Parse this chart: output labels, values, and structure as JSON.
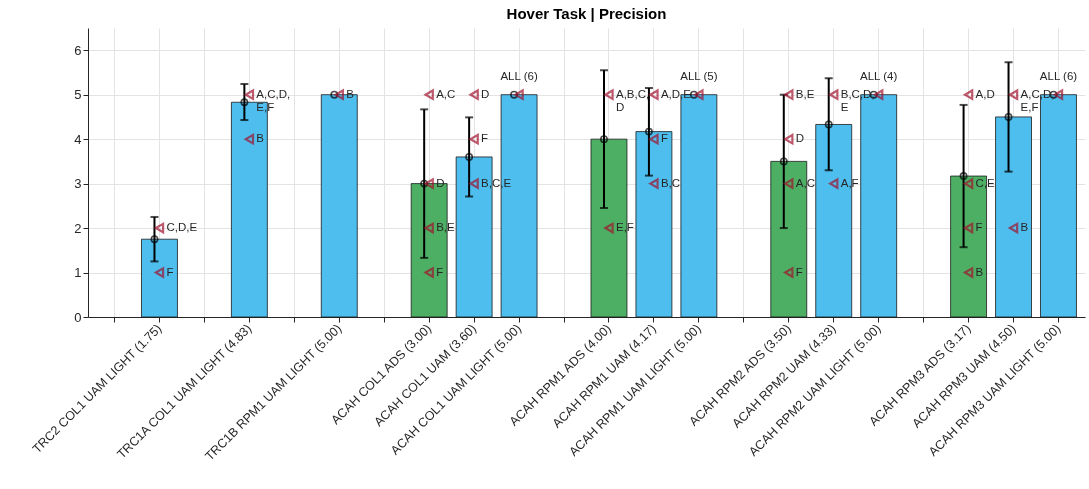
{
  "chart_data": {
    "type": "bar",
    "title": "Hover Task | Precision",
    "categories": [
      null,
      "TRC2 COL1 UAM LIGHT  (1.75)",
      null,
      "TRC1A COL1 UAM LIGHT  (4.83)",
      null,
      "TRC1B RPM1 UAM LIGHT  (5.00)",
      null,
      "ACAH COL1 ADS  (3.00)",
      "ACAH COL1 UAM  (3.60)",
      "ACAH COL1 UAM LIGHT  (5.00)",
      null,
      "ACAH RPM1 ADS  (4.00)",
      "ACAH RPM1 UAM  (4.17)",
      "ACAH RPM1 UAM LIGHT  (5.00)",
      null,
      "ACAH RPM2 ADS  (3.50)",
      "ACAH RPM2 UAM  (4.33)",
      "ACAH RPM2 UAM LIGHT  (5.00)",
      null,
      "ACAH RPM3 ADS  (3.17)",
      "ACAH RPM3 UAM  (4.50)",
      "ACAH RPM3 UAM LIGHT  (5.00)"
    ],
    "series": [
      {
        "values": [
          null,
          1.75,
          null,
          4.83,
          null,
          5.0,
          null,
          3.0,
          3.6,
          5.0,
          null,
          4.0,
          4.17,
          5.0,
          null,
          3.5,
          4.33,
          5.0,
          null,
          3.17,
          4.5,
          5.0
        ],
        "colors": [
          "#4dbeee",
          "#4dbeee",
          "#4dbeee",
          "#4dbeee",
          "#4dbeee",
          "#4dbeee",
          "#4dbeee",
          "#4daf64",
          "#4dbeee",
          "#4dbeee",
          "#4dbeee",
          "#4daf64",
          "#4dbeee",
          "#4dbeee",
          "#4dbeee",
          "#4daf64",
          "#4dbeee",
          "#4dbeee",
          "#4dbeee",
          "#4daf64",
          "#4dbeee",
          "#4dbeee"
        ],
        "errors": [
          null,
          [
            1.25,
            2.25
          ],
          null,
          [
            4.43,
            5.24
          ],
          null,
          null,
          null,
          [
            1.33,
            4.67
          ],
          [
            2.71,
            4.49
          ],
          null,
          null,
          [
            2.45,
            5.55
          ],
          [
            3.18,
            5.15
          ],
          null,
          null,
          [
            2.0,
            5.0
          ],
          [
            3.3,
            5.37
          ],
          null,
          null,
          [
            1.57,
            4.77
          ],
          [
            3.27,
            5.73
          ],
          null
        ]
      },
      {
        "type": "scatter",
        "color": "#000000",
        "marker": "circle",
        "x": [
          "TRC2 COL1 UAM LIGHT  (1.75)",
          "TRC1A COL1 UAM LIGHT  (4.83)",
          "TRC1B RPM1 UAM LIGHT  (5.00)",
          "ACAH COL1 ADS  (3.00)",
          "ACAH COL1 UAM  (3.60)",
          "ACAH COL1 UAM LIGHT  (5.00)",
          "ACAH RPM1 ADS  (4.00)",
          "ACAH RPM1 UAM  (4.17)",
          "ACAH RPM1 UAM LIGHT  (5.00)",
          "ACAH RPM2 ADS  (3.50)",
          "ACAH RPM2 UAM  (4.33)",
          "ACAH RPM2 UAM LIGHT  (5.00)",
          "ACAH RPM3 ADS  (3.17)",
          "ACAH RPM3 UAM  (4.50)",
          "ACAH RPM3 UAM LIGHT  (5.00)"
        ],
        "values": [
          1.75,
          4.83,
          5.0,
          3.0,
          3.6,
          5.0,
          4.0,
          4.17,
          5.0,
          3.5,
          4.33,
          5.0,
          3.17,
          4.5,
          5.0
        ]
      },
      {
        "type": "scatter",
        "color": "#a2142f",
        "marker": "triangle",
        "x": [
          "TRC2 COL1 UAM LIGHT  (1.75)",
          "TRC2 COL1 UAM LIGHT  (1.75)",
          "TRC1A COL1 UAM LIGHT  (4.83)",
          "TRC1A COL1 UAM LIGHT  (4.83)",
          "TRC1B RPM1 UAM LIGHT  (5.00)",
          "ACAH COL1 ADS  (3.00)",
          "ACAH COL1 ADS  (3.00)",
          "ACAH COL1 ADS  (3.00)",
          "ACAH COL1 ADS  (3.00)",
          "ACAH COL1 UAM  (3.60)",
          "ACAH COL1 UAM  (3.60)",
          "ACAH COL1 UAM  (3.60)",
          "ACAH COL1 UAM LIGHT  (5.00)",
          "ACAH RPM1 ADS  (4.00)",
          "ACAH RPM1 ADS  (4.00)",
          "ACAH RPM1 UAM  (4.17)",
          "ACAH RPM1 UAM  (4.17)",
          "ACAH RPM1 UAM  (4.17)",
          "ACAH RPM1 UAM LIGHT  (5.00)",
          "ACAH RPM2 ADS  (3.50)",
          "ACAH RPM2 ADS  (3.50)",
          "ACAH RPM2 ADS  (3.50)",
          "ACAH RPM2 ADS  (3.50)",
          "ACAH RPM2 UAM  (4.33)",
          "ACAH RPM2 UAM  (4.33)",
          "ACAH RPM2 UAM LIGHT  (5.00)",
          "ACAH RPM3 ADS  (3.17)",
          "ACAH RPM3 ADS  (3.17)",
          "ACAH RPM3 ADS  (3.17)",
          "ACAH RPM3 ADS  (3.17)",
          "ACAH RPM3 UAM  (4.50)",
          "ACAH RPM3 UAM  (4.50)",
          "ACAH RPM3 UAM LIGHT  (5.00)"
        ],
        "values": [
          2,
          1,
          5,
          4,
          5,
          5,
          3,
          2,
          1,
          5,
          4,
          3,
          5,
          5,
          2,
          5,
          4,
          3,
          5,
          5,
          4,
          3,
          1,
          5,
          3,
          5,
          5,
          3,
          2,
          1,
          5,
          2,
          5
        ]
      }
    ],
    "annotations": [
      {
        "text": "C,D,E",
        "x": "TRC2 COL1 UAM LIGHT  (1.75)",
        "y": 2
      },
      {
        "text": "F",
        "x": "TRC2 COL1 UAM LIGHT  (1.75)",
        "y": 1
      },
      {
        "text": "A,C,D,\nE,F",
        "x": "TRC1A COL1 UAM LIGHT  (4.83)",
        "y": 5
      },
      {
        "text": "B",
        "x": "TRC1A COL1 UAM LIGHT  (4.83)",
        "y": 4
      },
      {
        "text": "B",
        "x": "TRC1B RPM1 UAM LIGHT  (5.00)",
        "y": 5
      },
      {
        "text": "A,C",
        "x": "ACAH COL1 ADS  (3.00)",
        "y": 5
      },
      {
        "text": "D",
        "x": "ACAH COL1 ADS  (3.00)",
        "y": 3
      },
      {
        "text": "B,E",
        "x": "ACAH COL1 ADS  (3.00)",
        "y": 2
      },
      {
        "text": "F",
        "x": "ACAH COL1 ADS  (3.00)",
        "y": 1
      },
      {
        "text": "D",
        "x": "ACAH COL1 UAM  (3.60)",
        "y": 5
      },
      {
        "text": "F",
        "x": "ACAH COL1 UAM  (3.60)",
        "y": 4
      },
      {
        "text": "B,C,E",
        "x": "ACAH COL1 UAM  (3.60)",
        "y": 3
      },
      {
        "text": "A,B,C,\nD",
        "x": "ACAH RPM1 ADS  (4.00)",
        "y": 5
      },
      {
        "text": "E,F",
        "x": "ACAH RPM1 ADS  (4.00)",
        "y": 2
      },
      {
        "text": "A,D,E",
        "x": "ACAH RPM1 UAM  (4.17)",
        "y": 5
      },
      {
        "text": "F",
        "x": "ACAH RPM1 UAM  (4.17)",
        "y": 4
      },
      {
        "text": "B,C",
        "x": "ACAH RPM1 UAM  (4.17)",
        "y": 3
      },
      {
        "text": "B,E",
        "x": "ACAH RPM2 ADS  (3.50)",
        "y": 5
      },
      {
        "text": "D",
        "x": "ACAH RPM2 ADS  (3.50)",
        "y": 4
      },
      {
        "text": "A,C",
        "x": "ACAH RPM2 ADS  (3.50)",
        "y": 3
      },
      {
        "text": "F",
        "x": "ACAH RPM2 ADS  (3.50)",
        "y": 1
      },
      {
        "text": "B,C,D,\nE",
        "x": "ACAH RPM2 UAM  (4.33)",
        "y": 5
      },
      {
        "text": "A,F",
        "x": "ACAH RPM2 UAM  (4.33)",
        "y": 3
      },
      {
        "text": "A,D",
        "x": "ACAH RPM3 ADS  (3.17)",
        "y": 5
      },
      {
        "text": "C,E",
        "x": "ACAH RPM3 ADS  (3.17)",
        "y": 3
      },
      {
        "text": "F",
        "x": "ACAH RPM3 ADS  (3.17)",
        "y": 2
      },
      {
        "text": "B",
        "x": "ACAH RPM3 ADS  (3.17)",
        "y": 1
      },
      {
        "text": "A,C,D,\nE,F",
        "x": "ACAH RPM3 UAM  (4.50)",
        "y": 5
      },
      {
        "text": "B",
        "x": "ACAH RPM3 UAM  (4.50)",
        "y": 2
      },
      "ALL (6)",
      "ALL (5)",
      "ALL (4)",
      "ALL (6)"
    ],
    "ylim": [
      0,
      6.5
    ],
    "yticks": [
      0,
      1,
      2,
      3,
      4,
      5,
      6
    ],
    "grid": true
  }
}
